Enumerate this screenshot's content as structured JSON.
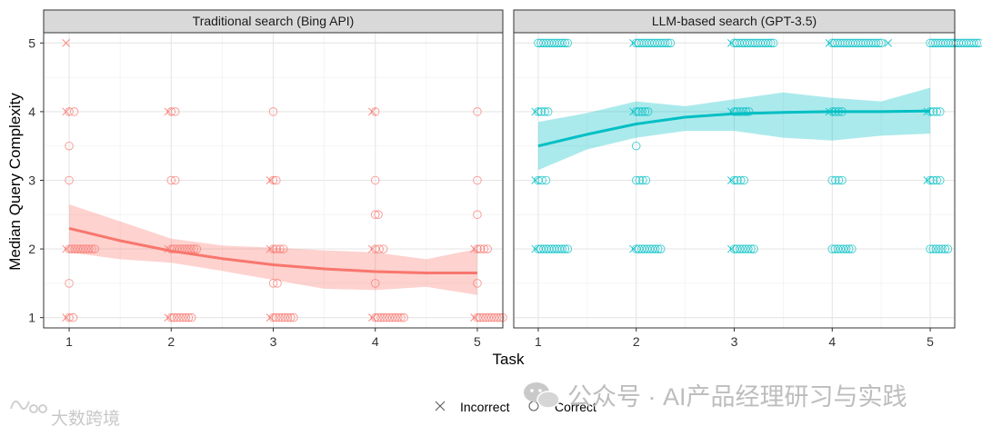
{
  "chart_data": {
    "type": "scatter",
    "xlabel": "Task",
    "ylabel": "Median Query Complexity",
    "x_ticks": [
      "1",
      "2",
      "3",
      "4",
      "5"
    ],
    "y_ticks": [
      "1",
      "2",
      "3",
      "4",
      "5"
    ],
    "xlim": [
      0.75,
      5.25
    ],
    "ylim": [
      0.85,
      5.15
    ],
    "grid": true,
    "legend": {
      "position": "bottom",
      "entries": [
        {
          "label": "Incorrect",
          "marker": "x"
        },
        {
          "label": "Correct",
          "marker": "circle"
        }
      ]
    },
    "panels": [
      {
        "title": "Traditional search (Bing API)",
        "color": "#F8766D",
        "fill": "#F8766D",
        "incorrect": [
          [
            1,
            5
          ],
          [
            1,
            4
          ],
          [
            1,
            2
          ],
          [
            1,
            1
          ],
          [
            2,
            4
          ],
          [
            2,
            2
          ],
          [
            2,
            1
          ],
          [
            3,
            3
          ],
          [
            3,
            2
          ],
          [
            3,
            1
          ],
          [
            4,
            4
          ],
          [
            4,
            2
          ],
          [
            4,
            1
          ],
          [
            5,
            2
          ],
          [
            5,
            1
          ]
        ],
        "correct_clusters": [
          [
            1,
            4,
            0.05
          ],
          [
            1,
            3.5,
            0
          ],
          [
            1,
            3,
            0
          ],
          [
            1,
            2,
            0.25
          ],
          [
            1,
            1.5,
            0
          ],
          [
            1,
            1,
            0.04
          ],
          [
            2,
            4,
            0.04
          ],
          [
            2,
            3,
            0.04
          ],
          [
            2,
            2,
            0.25
          ],
          [
            2,
            1,
            0.2
          ],
          [
            3,
            4,
            0
          ],
          [
            3,
            3,
            0.03
          ],
          [
            3,
            2,
            0.1
          ],
          [
            3,
            1.5,
            0.04
          ],
          [
            3,
            1,
            0.2
          ],
          [
            4,
            4,
            0
          ],
          [
            4,
            3,
            0
          ],
          [
            4,
            2.5,
            0.03
          ],
          [
            4,
            2,
            0.08
          ],
          [
            4,
            1.5,
            0
          ],
          [
            4,
            1,
            0.28
          ],
          [
            5,
            4,
            0
          ],
          [
            5,
            3,
            0
          ],
          [
            5,
            2.5,
            0
          ],
          [
            5,
            2,
            0.1
          ],
          [
            5,
            1.5,
            0
          ],
          [
            5,
            1,
            0.25
          ]
        ],
        "smooth_x": [
          1,
          1.5,
          2,
          2.5,
          3,
          3.5,
          4,
          4.5,
          5
        ],
        "smooth_y": [
          2.3,
          2.12,
          1.97,
          1.86,
          1.77,
          1.71,
          1.67,
          1.65,
          1.65
        ],
        "ci_lower": [
          1.95,
          1.85,
          1.8,
          1.68,
          1.55,
          1.42,
          1.4,
          1.45,
          1.33
        ],
        "ci_upper": [
          2.65,
          2.4,
          2.15,
          2.05,
          2.02,
          1.98,
          1.95,
          1.85,
          2.0
        ]
      },
      {
        "title": "LLM-based search (GPT-3.5)",
        "color": "#00BFC4",
        "fill": "#00BFC4",
        "incorrect": [
          [
            1,
            4
          ],
          [
            1,
            3
          ],
          [
            1,
            2
          ],
          [
            2,
            5
          ],
          [
            2,
            4
          ],
          [
            2,
            2
          ],
          [
            3,
            5
          ],
          [
            3,
            4
          ],
          [
            3,
            3
          ],
          [
            3,
            2
          ],
          [
            4,
            5
          ],
          [
            4,
            4
          ],
          [
            4.6,
            5
          ],
          [
            5,
            4
          ],
          [
            5,
            3
          ]
        ],
        "correct_clusters": [
          [
            1,
            5,
            0.3
          ],
          [
            1,
            4,
            0.1
          ],
          [
            1,
            3,
            0.08
          ],
          [
            1,
            2,
            0.3
          ],
          [
            2,
            5,
            0.35
          ],
          [
            2,
            4,
            0.12
          ],
          [
            2,
            3.5,
            0
          ],
          [
            2,
            3,
            0.1
          ],
          [
            2,
            2,
            0.25
          ],
          [
            3,
            5,
            0.4
          ],
          [
            3,
            4,
            0.15
          ],
          [
            3,
            3,
            0.1
          ],
          [
            3,
            2,
            0.2
          ],
          [
            4,
            5,
            0.5
          ],
          [
            4,
            4,
            0.1
          ],
          [
            4,
            3,
            0.1
          ],
          [
            4,
            2,
            0.2
          ],
          [
            5,
            5,
            0.5
          ],
          [
            5,
            4,
            0.1
          ],
          [
            5,
            3,
            0.1
          ],
          [
            5,
            2,
            0.18
          ]
        ],
        "smooth_x": [
          1,
          1.5,
          2,
          2.5,
          3,
          3.5,
          4,
          4.5,
          5
        ],
        "smooth_y": [
          3.5,
          3.67,
          3.82,
          3.92,
          3.97,
          3.99,
          4.0,
          4.0,
          4.01
        ],
        "ci_lower": [
          3.15,
          3.45,
          3.62,
          3.72,
          3.72,
          3.62,
          3.58,
          3.65,
          3.68
        ],
        "ci_upper": [
          3.85,
          3.98,
          4.15,
          4.08,
          4.18,
          4.28,
          4.2,
          4.15,
          4.35
        ]
      }
    ]
  },
  "watermark": {
    "wechat_text": "公众号 · AI产品经理研习与实践",
    "logo_text": "大数跨境"
  }
}
